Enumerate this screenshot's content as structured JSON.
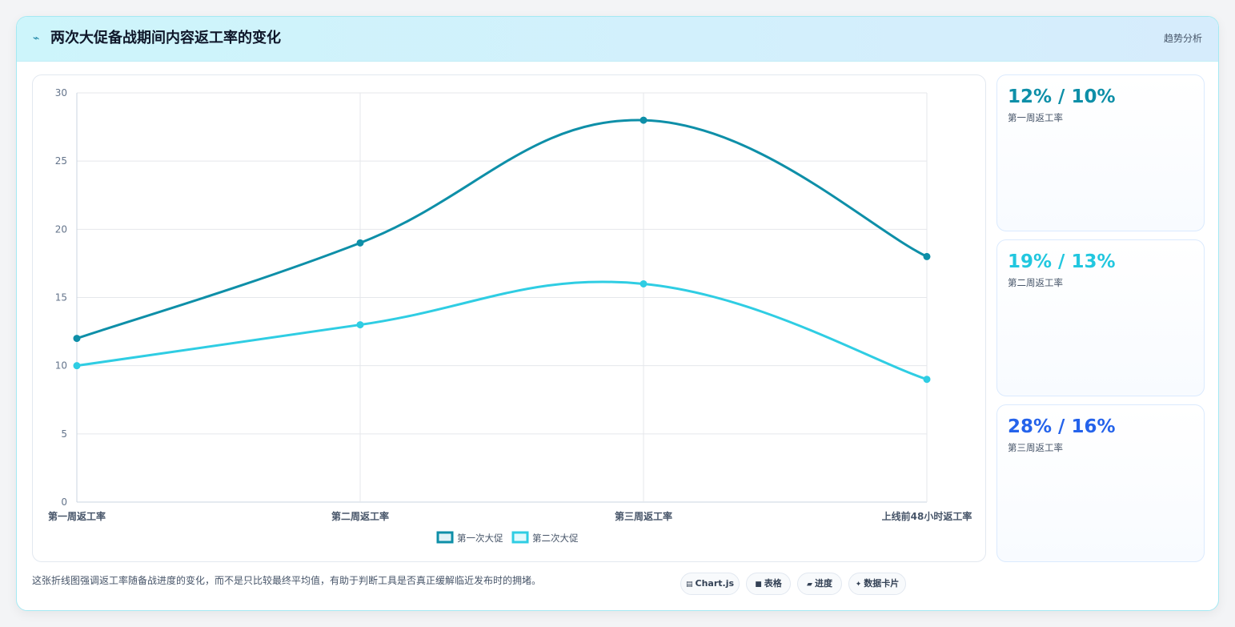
{
  "header": {
    "title": "两次大促备战期间内容返工率的变化",
    "tag": "趋势分析",
    "icon": "lightning-icon"
  },
  "chart_data": {
    "type": "line",
    "categories": [
      "第一周返工率",
      "第二周返工率",
      "第三周返工率",
      "上线前48小时返工率"
    ],
    "series": [
      {
        "name": "第一次大促",
        "values": [
          12,
          19,
          28,
          18
        ],
        "color": "#0e8fa8"
      },
      {
        "name": "第二次大促",
        "values": [
          10,
          13,
          16,
          9
        ],
        "color": "#2fcde3"
      }
    ],
    "ylim": [
      0,
      30
    ],
    "yticks": [
      0,
      5,
      10,
      15,
      20,
      25,
      30
    ],
    "grid": true,
    "smooth": true,
    "legend": "bottom"
  },
  "stats": [
    {
      "value": "12% / 10%",
      "label": "第一周返工率",
      "color": "#0e8fa8"
    },
    {
      "value": "19% / 13%",
      "label": "第二周返工率",
      "color": "#22c7df"
    },
    {
      "value": "28% / 16%",
      "label": "第三周返工率",
      "color": "#2563eb"
    }
  ],
  "footer": {
    "note": "这张折线图强调返工率随备战进度的变化，而不是只比较最终平均值，有助于判断工具是否真正缓解临近发布时的拥堵。",
    "chips": [
      {
        "label": "Chart.js",
        "icon": "chart-icon"
      },
      {
        "label": "表格",
        "icon": "table-icon"
      },
      {
        "label": "进度",
        "icon": "progress-icon"
      },
      {
        "label": "数据卡片",
        "icon": "card-icon"
      }
    ]
  }
}
